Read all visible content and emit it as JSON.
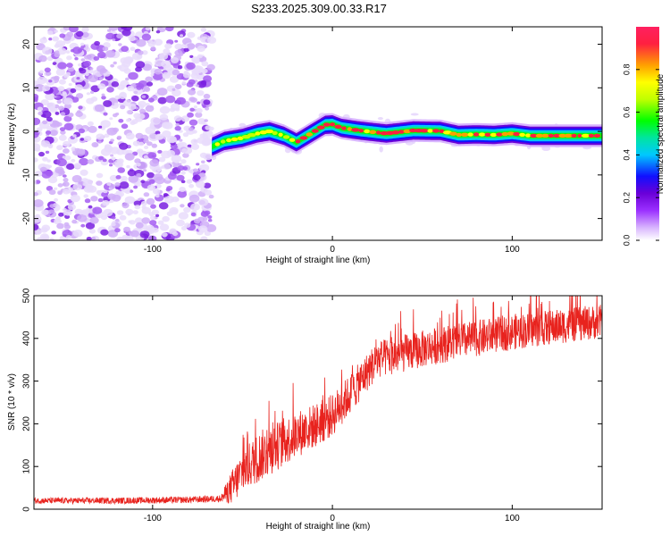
{
  "title": "S233.2025.309.00.33.R17",
  "chart_data": [
    {
      "type": "heatmap",
      "title": "S233.2025.309.00.33.R17",
      "xlabel": "Height of straight line (km)",
      "ylabel": "Frequency (Hz)",
      "xlim": [
        -166,
        150
      ],
      "ylim": [
        -25,
        24
      ],
      "x_ticks": [
        "-100",
        "0",
        "100"
      ],
      "x_tick_values": [
        -100,
        0,
        100
      ],
      "y_ticks": [
        "20",
        "10",
        "0",
        "-10",
        "-20"
      ],
      "y_tick_values": [
        20,
        10,
        0,
        -10,
        -20
      ],
      "noise_region_x": [
        -166,
        -67
      ],
      "signal_track": {
        "x": [
          -67,
          -60,
          -50,
          -42,
          -35,
          -27,
          -20,
          -14,
          -8,
          -4,
          0,
          5,
          15,
          30,
          45,
          60,
          70,
          80,
          90,
          100,
          110,
          125,
          150
        ],
        "y": [
          -3.5,
          -2.2,
          -1.5,
          -0.5,
          0.0,
          -1.0,
          -2.5,
          -1.0,
          0.5,
          1.5,
          1.6,
          0.8,
          0.2,
          -0.5,
          0.2,
          0.1,
          -0.8,
          -0.7,
          -0.8,
          -0.5,
          -1.0,
          -1.0,
          -1.0
        ],
        "peak_amplitude": 1.0
      },
      "colorbar": {
        "label": "Normalized spectral amplitude",
        "ticks": [
          "0.0",
          "0.2",
          "0.4",
          "0.6",
          "0.8"
        ],
        "tick_values": [
          0.0,
          0.2,
          0.4,
          0.6,
          0.8
        ],
        "range": [
          0,
          1
        ],
        "colormap": [
          "#ffffff",
          "#d8b4fe",
          "#9b30ff",
          "#6a00d8",
          "#1010ff",
          "#00c8ff",
          "#00e5a0",
          "#00ff00",
          "#c0ff00",
          "#ffff00",
          "#ffa000",
          "#ff2040"
        ]
      }
    },
    {
      "type": "line",
      "xlabel": "Height of straight line (km)",
      "ylabel": "SNR (10 * v/v)",
      "xlim": [
        -166,
        150
      ],
      "ylim": [
        0,
        500
      ],
      "x_ticks": [
        "-100",
        "0",
        "100"
      ],
      "x_tick_values": [
        -100,
        0,
        100
      ],
      "y_ticks": [
        "0",
        "100",
        "200",
        "300",
        "400",
        "500"
      ],
      "y_tick_values": [
        0,
        100,
        200,
        300,
        400,
        500
      ],
      "color": "#e8231e",
      "trend": {
        "x": [
          -166,
          -120,
          -80,
          -62,
          -55,
          -50,
          -40,
          -30,
          -20,
          -10,
          0,
          10,
          20,
          25,
          40,
          60,
          80,
          100,
          120,
          150
        ],
        "y": [
          20,
          20,
          22,
          25,
          55,
          90,
          125,
          150,
          175,
          195,
          220,
          270,
          325,
          350,
          365,
          385,
          400,
          415,
          425,
          440
        ]
      },
      "noise_amplitude": {
        "x": [
          -166,
          -62,
          -55,
          -40,
          -20,
          20,
          150
        ],
        "y": [
          7,
          8,
          45,
          60,
          55,
          45,
          40
        ]
      }
    }
  ]
}
